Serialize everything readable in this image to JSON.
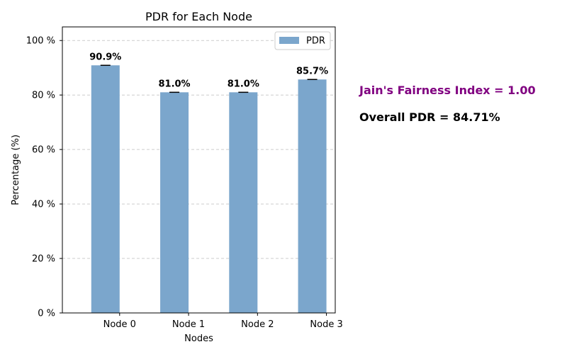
{
  "chart_data": {
    "type": "bar",
    "title": "PDR for Each Node",
    "xlabel": "Nodes",
    "ylabel": "Percentage (%)",
    "categories": [
      "Node 0",
      "Node 1",
      "Node 2",
      "Node 3"
    ],
    "series": [
      {
        "name": "PDR",
        "values": [
          90.9,
          81.0,
          81.0,
          85.7
        ],
        "color": "#7ba6cc"
      }
    ],
    "data_labels": [
      "90.9%",
      "81.0%",
      "81.0%",
      "85.7%"
    ],
    "yticks": [
      0,
      20,
      40,
      60,
      80,
      100
    ],
    "ytick_labels": [
      "0 %",
      "20 %",
      "40 %",
      "60 %",
      "80 %",
      "100 %"
    ],
    "ylim": [
      0,
      105
    ],
    "grid": "y-dashed",
    "legend_position": "top-right",
    "error_bars": true
  },
  "annotations": {
    "fairness": {
      "text": "Jain's Fairness Index = 1.00",
      "color": "#800080"
    },
    "overall": {
      "text": "Overall PDR = 84.71%",
      "color": "#000000"
    }
  }
}
